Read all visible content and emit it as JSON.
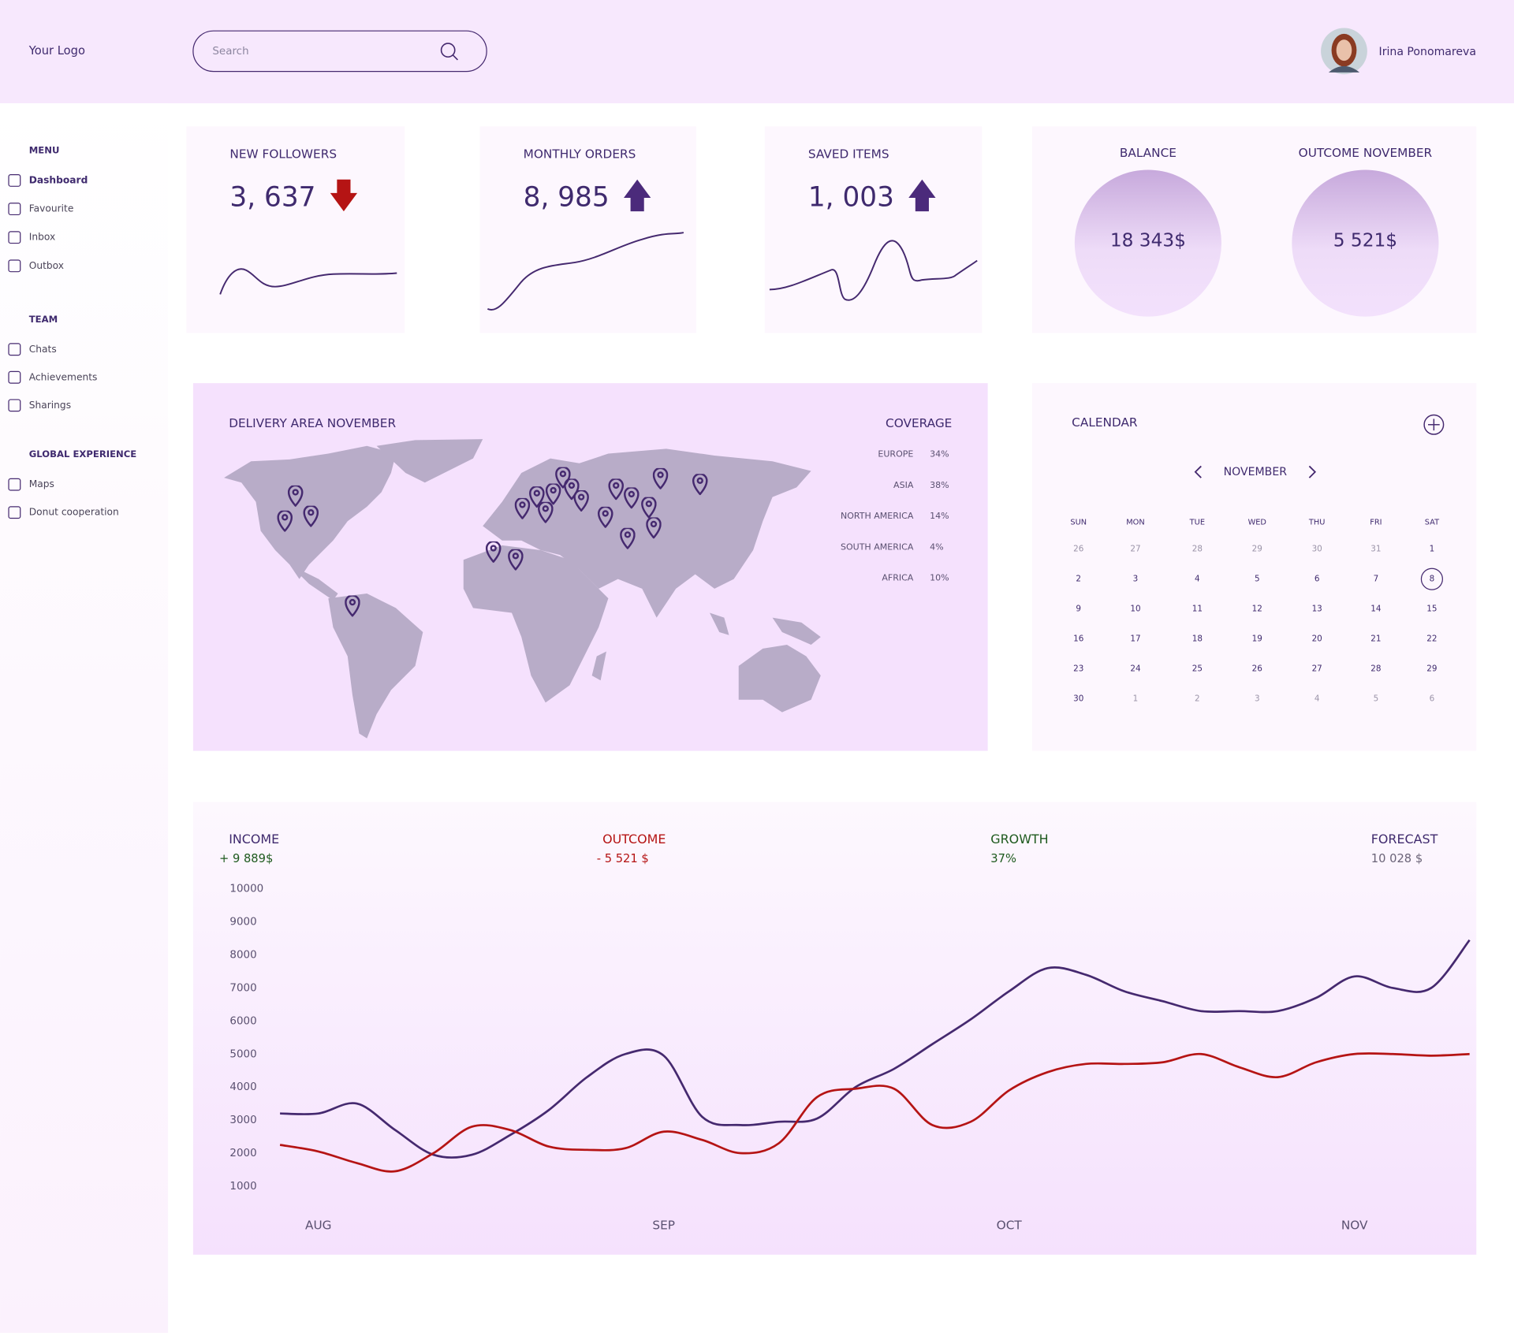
{
  "header": {
    "logo": "Your Logo",
    "search_placeholder": "Search",
    "user_name": "Irina Ponomareva"
  },
  "sidebar": {
    "sections": [
      {
        "title": "MENU",
        "items": [
          "Dashboard",
          "Favourite",
          "Inbox",
          "Outbox"
        ]
      },
      {
        "title": "TEAM",
        "items": [
          "Chats",
          "Achievements",
          "Sharings"
        ]
      },
      {
        "title": "GLOBAL EXPERIENCE",
        "items": [
          "Maps",
          "Donut cooperation"
        ]
      }
    ]
  },
  "stats": [
    {
      "title": "NEW FOLLOWERS",
      "value": "3, 637",
      "trend": "down"
    },
    {
      "title": "MONTHLY ORDERS",
      "value": "8, 985",
      "trend": "up"
    },
    {
      "title": "SAVED ITEMS",
      "value": "1, 003",
      "trend": "up"
    }
  ],
  "balance": [
    {
      "title": "BALANCE",
      "value": "18 343$"
    },
    {
      "title": "OUTCOME NOVEMBER",
      "value": "5 521$"
    }
  ],
  "map": {
    "title": "DELIVERY AREA NOVEMBER",
    "coverage_title": "COVERAGE",
    "coverage": [
      {
        "region": "EUROPE",
        "share": "34%"
      },
      {
        "region": "ASIA",
        "share": "38%"
      },
      {
        "region": "NORTH AMERICA",
        "share": "14%"
      },
      {
        "region": "SOUTH AMERICA",
        "share": "4%"
      },
      {
        "region": "AFRICA",
        "share": "10%"
      }
    ]
  },
  "calendar": {
    "title": "CALENDAR",
    "month": "NOVEMBER",
    "weekdays": [
      "SUN",
      "MON",
      "TUE",
      "WED",
      "THU",
      "FRI",
      "SAT"
    ],
    "prev_days": [
      26,
      27,
      28,
      29,
      30,
      31
    ],
    "days": [
      1,
      2,
      3,
      4,
      5,
      6,
      7,
      8,
      9,
      10,
      11,
      12,
      13,
      14,
      15,
      16,
      17,
      18,
      19,
      20,
      21,
      22,
      23,
      24,
      25,
      26,
      27,
      28,
      29,
      30
    ],
    "next_days": [
      1,
      2,
      3,
      4,
      5,
      6
    ],
    "selected": 8
  },
  "chart_data": {
    "type": "line",
    "summary": [
      {
        "label": "INCOME",
        "value": "+ 9 889$",
        "label_color": "#3f2a6e",
        "value_color": "#1e5a1e"
      },
      {
        "label": "OUTCOME",
        "value": "- 5 521 $",
        "label_color": "#b51414",
        "value_color": "#b51414"
      },
      {
        "label": "GROWTH",
        "value": "37%",
        "label_color": "#1e5a1e",
        "value_color": "#1e5a1e"
      },
      {
        "label": "FORECAST",
        "value": "10 028 $",
        "label_color": "#3f2a6e",
        "value_color": "#6b6478"
      }
    ],
    "categories": [
      null,
      "AUG",
      null,
      null,
      null,
      null,
      null,
      null,
      null,
      null,
      "SEP",
      null,
      null,
      null,
      null,
      null,
      null,
      null,
      null,
      "OCT",
      null,
      null,
      null,
      null,
      null,
      null,
      null,
      null,
      "NOV",
      null,
      null,
      null
    ],
    "series": [
      {
        "name": "INCOME",
        "color": "#45296f",
        "values": [
          3200,
          3200,
          3500,
          2700,
          1950,
          1950,
          2550,
          3300,
          4300,
          5000,
          4950,
          3100,
          2850,
          2950,
          3050,
          4000,
          4550,
          5300,
          6050,
          6900,
          7600,
          7400,
          6900,
          6600,
          6300,
          6300,
          6300,
          6700,
          7350,
          7000,
          7000,
          8450
        ]
      },
      {
        "name": "OUTCOME",
        "color": "#b51414",
        "values": [
          2250,
          2050,
          1700,
          1450,
          2000,
          2800,
          2700,
          2200,
          2100,
          2150,
          2650,
          2400,
          2000,
          2300,
          3700,
          3950,
          3950,
          2850,
          2950,
          3900,
          4450,
          4700,
          4700,
          4750,
          5000,
          4600,
          4300,
          4750,
          5000,
          5000,
          4950,
          5000
        ]
      }
    ],
    "ylim": [
      1000,
      10000
    ],
    "yticks": [
      1000,
      2000,
      3000,
      4000,
      5000,
      6000,
      7000,
      8000,
      9000,
      10000
    ]
  }
}
